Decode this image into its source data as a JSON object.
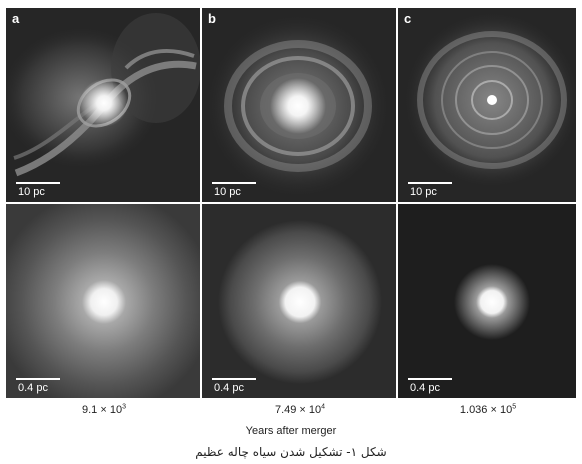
{
  "panels": [
    {
      "letter": "a",
      "scale_top": "10 pc",
      "scale_bottom": "0.4 pc"
    },
    {
      "letter": "b",
      "scale_top": "10 pc",
      "scale_bottom": "0.4 pc"
    },
    {
      "letter": "c",
      "scale_top": "10 pc",
      "scale_bottom": "0.4 pc"
    }
  ],
  "times": [
    {
      "base": "9.1 × 10",
      "exp": "3"
    },
    {
      "base": "7.49 × 10",
      "exp": "4"
    },
    {
      "base": "1.036 × 10",
      "exp": "5"
    }
  ],
  "x_axis_label": "Years after merger",
  "caption": "شکل ۱- تشکیل شدن سیاه چاله عظیم"
}
